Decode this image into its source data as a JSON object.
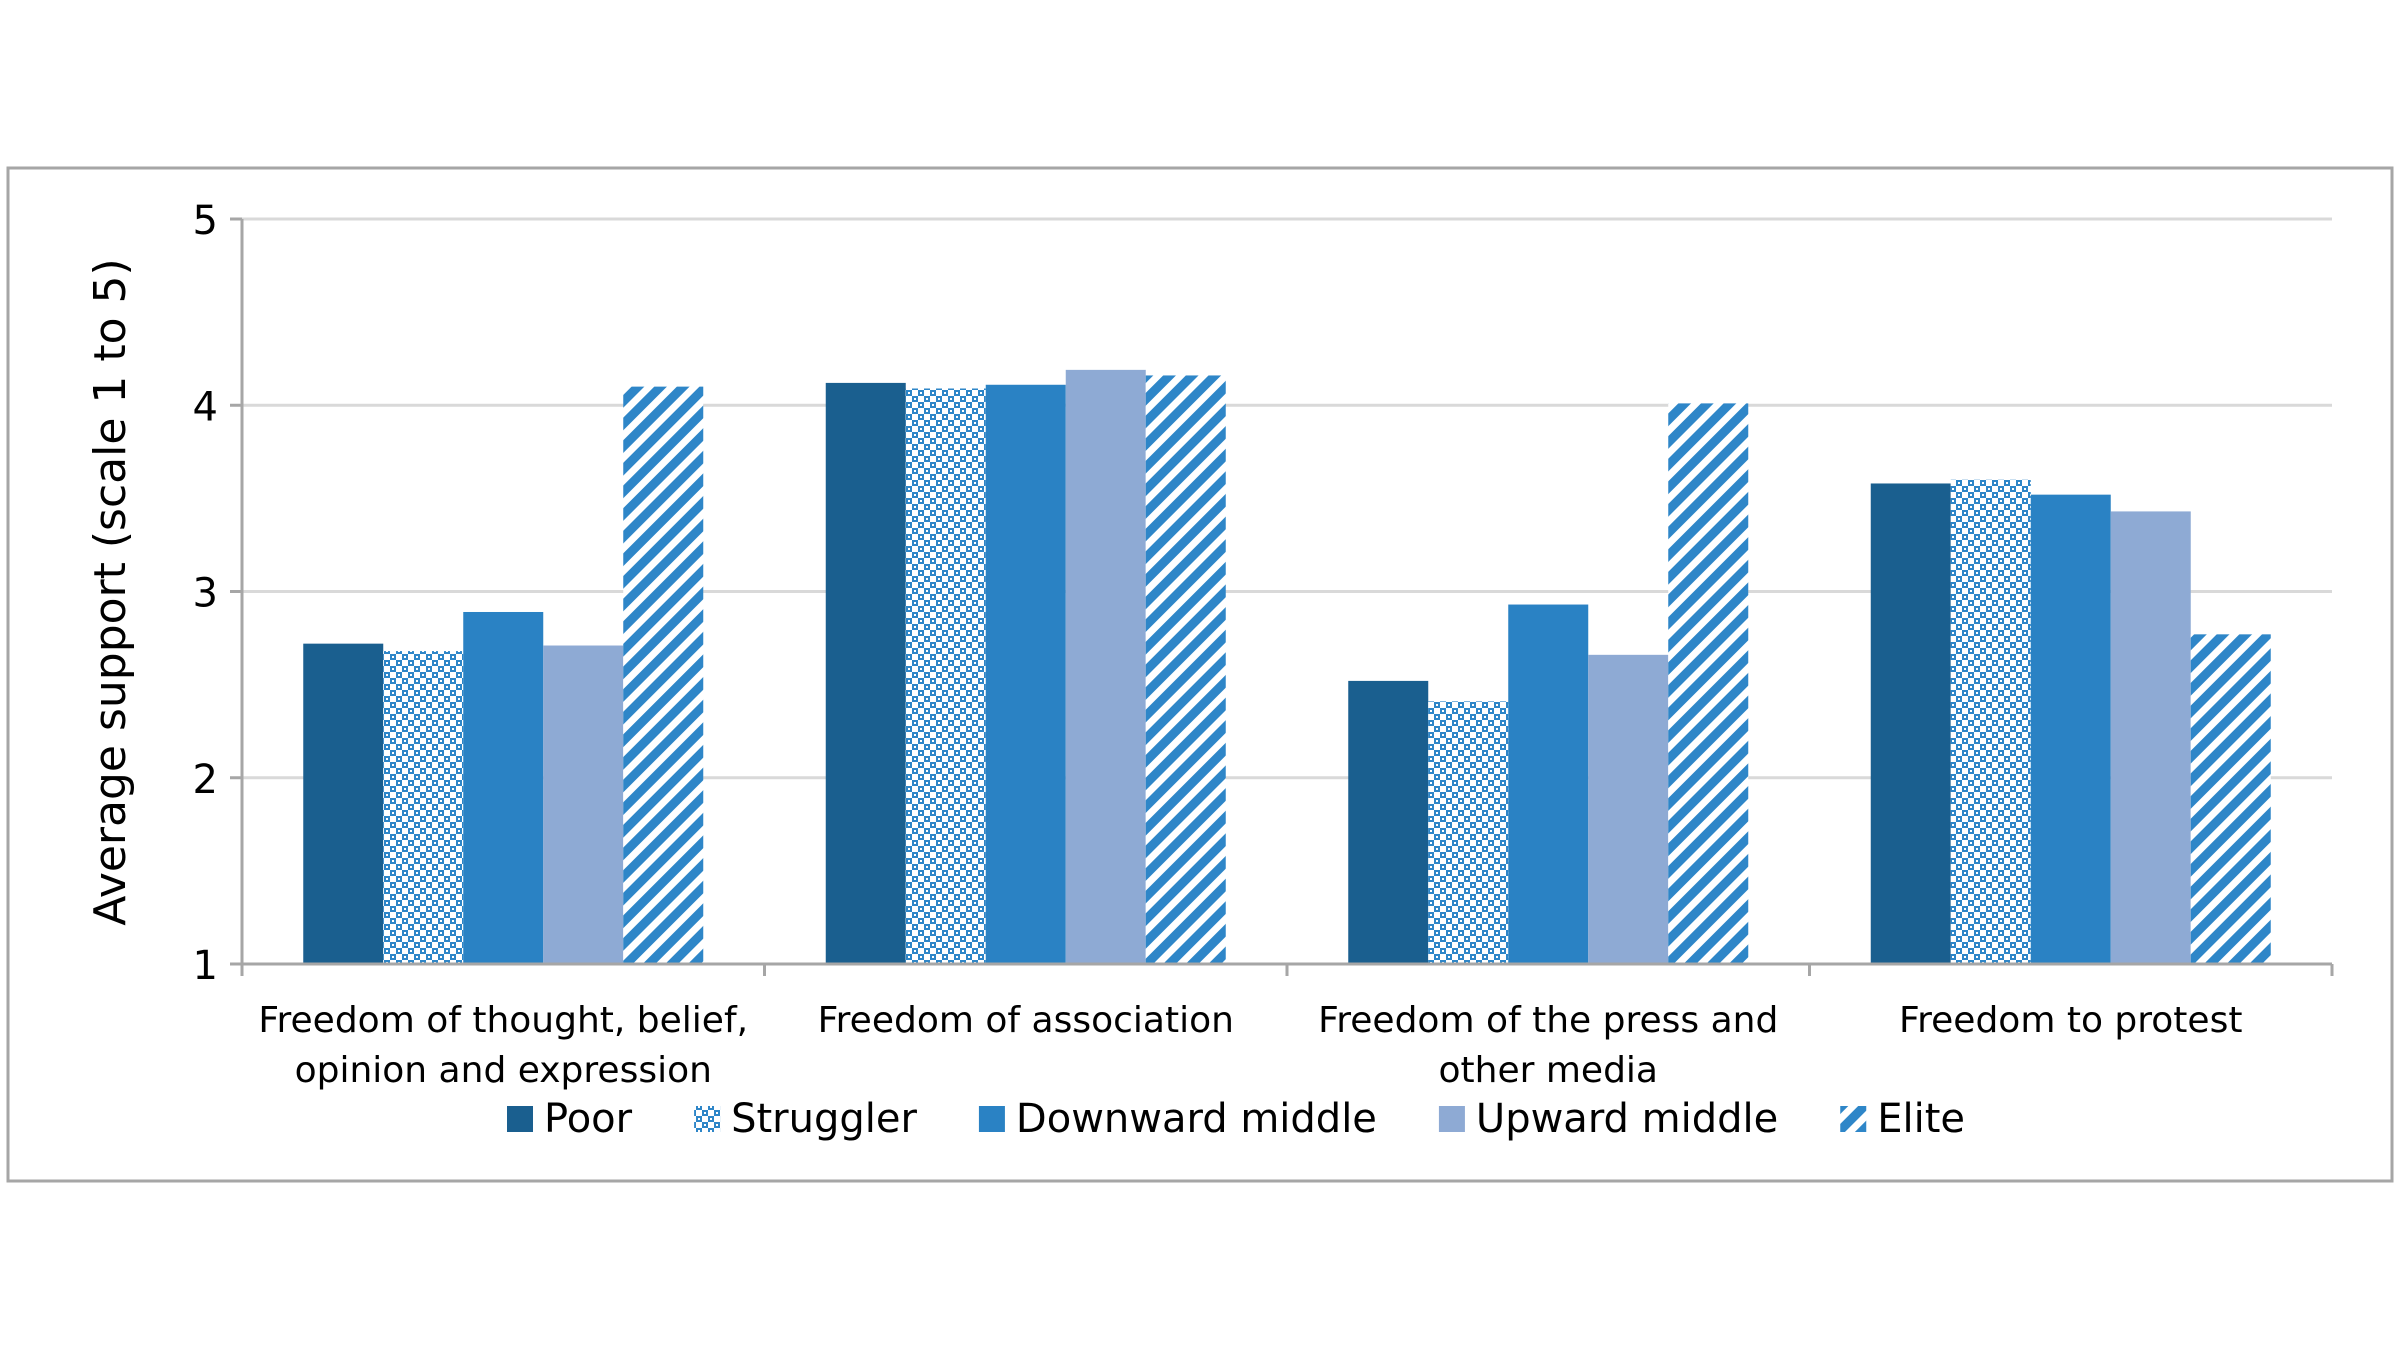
{
  "chart_data": {
    "type": "bar",
    "title": "",
    "xlabel": "",
    "ylabel": "Average support (scale 1 to 5)",
    "ylim": [
      1,
      5
    ],
    "yticks": [
      "1",
      "2",
      "3",
      "4",
      "5"
    ],
    "grid": true,
    "legend_placement": "bottom",
    "categories": [
      [
        "Freedom of thought, belief,",
        "opinion and expression"
      ],
      [
        "Freedom of association"
      ],
      [
        "Freedom of the press and",
        "other media"
      ],
      [
        "Freedom to protest"
      ]
    ],
    "series": [
      {
        "name": "Poor",
        "color": "#1a5f8f",
        "pattern": "solid",
        "values": [
          2.72,
          4.12,
          2.52,
          3.58
        ]
      },
      {
        "name": "Struggler",
        "color": "#2e86c8",
        "pattern": "checker",
        "values": [
          2.68,
          4.09,
          2.41,
          3.6
        ]
      },
      {
        "name": "Downward middle",
        "color": "#2a82c4",
        "pattern": "solid",
        "values": [
          2.89,
          4.11,
          2.93,
          3.52
        ]
      },
      {
        "name": "Upward middle",
        "color": "#8eaad4",
        "pattern": "solid",
        "values": [
          2.71,
          4.19,
          2.66,
          3.43
        ]
      },
      {
        "name": "Elite",
        "color": "#2e86c8",
        "pattern": "diagonal",
        "values": [
          4.1,
          4.16,
          4.01,
          2.77
        ]
      }
    ]
  }
}
